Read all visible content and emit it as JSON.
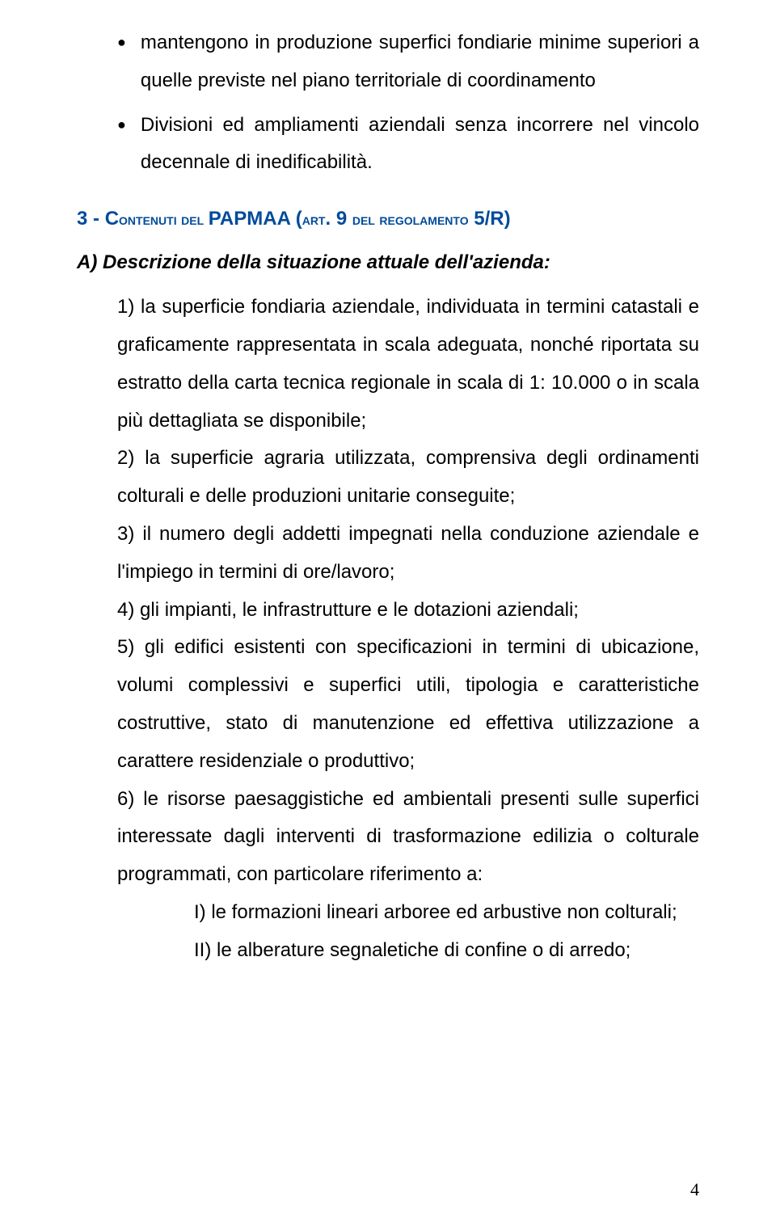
{
  "bullet1": "mantengono in produzione superfici fondiarie minime superiori a quelle previste nel piano territoriale di coordinamento",
  "bullet2": "Divisioni ed ampliamenti aziendali senza incorrere nel vincolo decennale di inedificabilità.",
  "heading": {
    "num": "3 - ",
    "partA": "C",
    "partA2": "ontenuti del ",
    "partB": "PAPMAA (",
    "partC": "art",
    "partD": ". 9 ",
    "partE": "del regolamento",
    "partF": " 5/R)"
  },
  "subheading": "A) Descrizione della situazione attuale dell'azienda:",
  "para1": "1) la superficie fondiaria aziendale, individuata in termini catastali e graficamente rappresentata in scala adeguata, nonché riportata su estratto della carta tecnica regionale in scala di 1: 10.000 o in scala più dettagliata se disponibile;",
  "para2": "2) la superficie agraria utilizzata, comprensiva degli ordinamenti colturali e delle produzioni unitarie conseguite;",
  "para3": "3) il numero degli addetti impegnati nella conduzione aziendale e l'impiego in termini di ore/lavoro;",
  "para4": "4) gli impianti, le infrastrutture e le dotazioni aziendali;",
  "para5": "5) gli edifici esistenti con specificazioni in termini di ubicazione, volumi complessivi e superfici utili, tipologia e caratteristiche costruttive, stato di manutenzione ed effettiva utilizzazione a carattere residenziale o produttivo;",
  "para6": "6) le risorse paesaggistiche ed ambientali presenti sulle superfici interessate dagli interventi di trasformazione edilizia o colturale programmati, con particolare riferimento a:",
  "sub1": "I) le formazioni lineari arboree ed arbustive non colturali;",
  "sub2": "II) le alberature segnaletiche di confine o di arredo;",
  "pageNum": "4"
}
